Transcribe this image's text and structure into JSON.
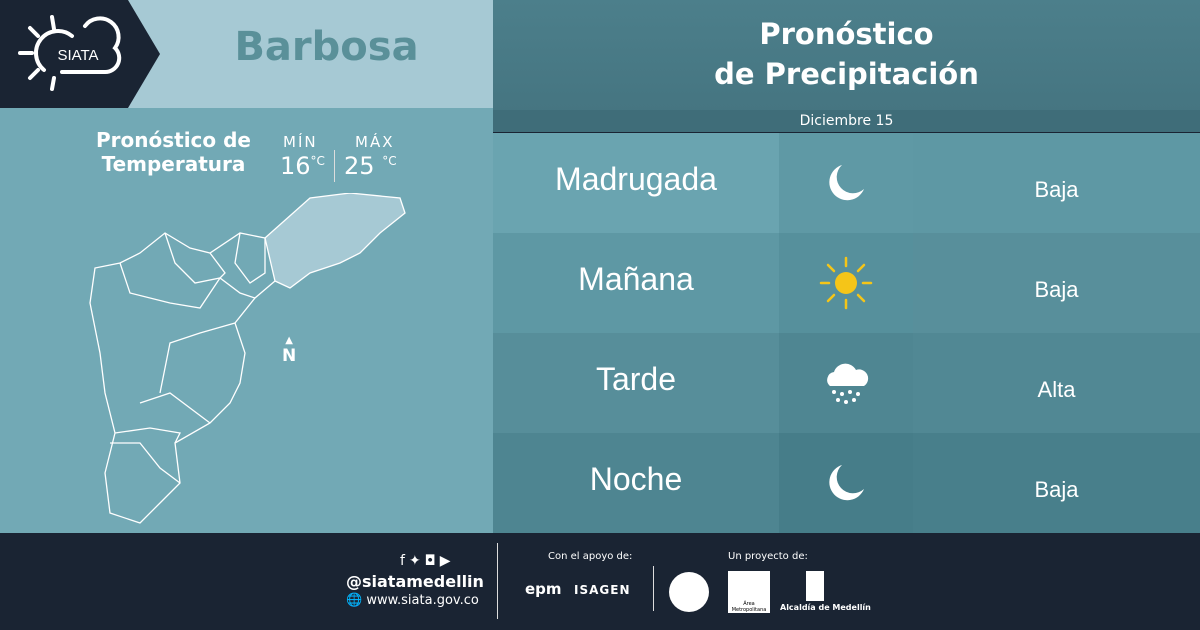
{
  "logo": {
    "text": "SIATA"
  },
  "city": "Barbosa",
  "temperature": {
    "title_line1": "Pronóstico de",
    "title_line2": "Temperatura",
    "min_label": "MÍN",
    "min_value": "16",
    "max_label": "MÁX",
    "max_value": "25",
    "unit": "°C"
  },
  "map": {
    "north_label": "N"
  },
  "forecast": {
    "title_line1": "Pronóstico",
    "title_line2": "de Precipitación",
    "date": "Diciembre 15",
    "rows": [
      {
        "period": "Madrugada",
        "icon": "moon-icon",
        "level": "Baja"
      },
      {
        "period": "Mañana",
        "icon": "sun-icon",
        "level": "Baja"
      },
      {
        "period": "Tarde",
        "icon": "rain-cloud-icon",
        "level": "Alta"
      },
      {
        "period": "Noche",
        "icon": "moon-icon",
        "level": "Baja"
      }
    ]
  },
  "footer": {
    "handle": "@siatamedellin",
    "website": "www.siata.gov.co",
    "support_label": "Con el apoyo de:",
    "support_logos": [
      "epm",
      "ISAGEN"
    ],
    "project_label": "Un proyecto de:",
    "project_logos": [
      "Área Metropolitana",
      "Alcaldía de Medellín"
    ]
  },
  "colors": {
    "dark": "#1a2433",
    "sun": "#f5c518",
    "header_light": "#a6c9d4"
  }
}
